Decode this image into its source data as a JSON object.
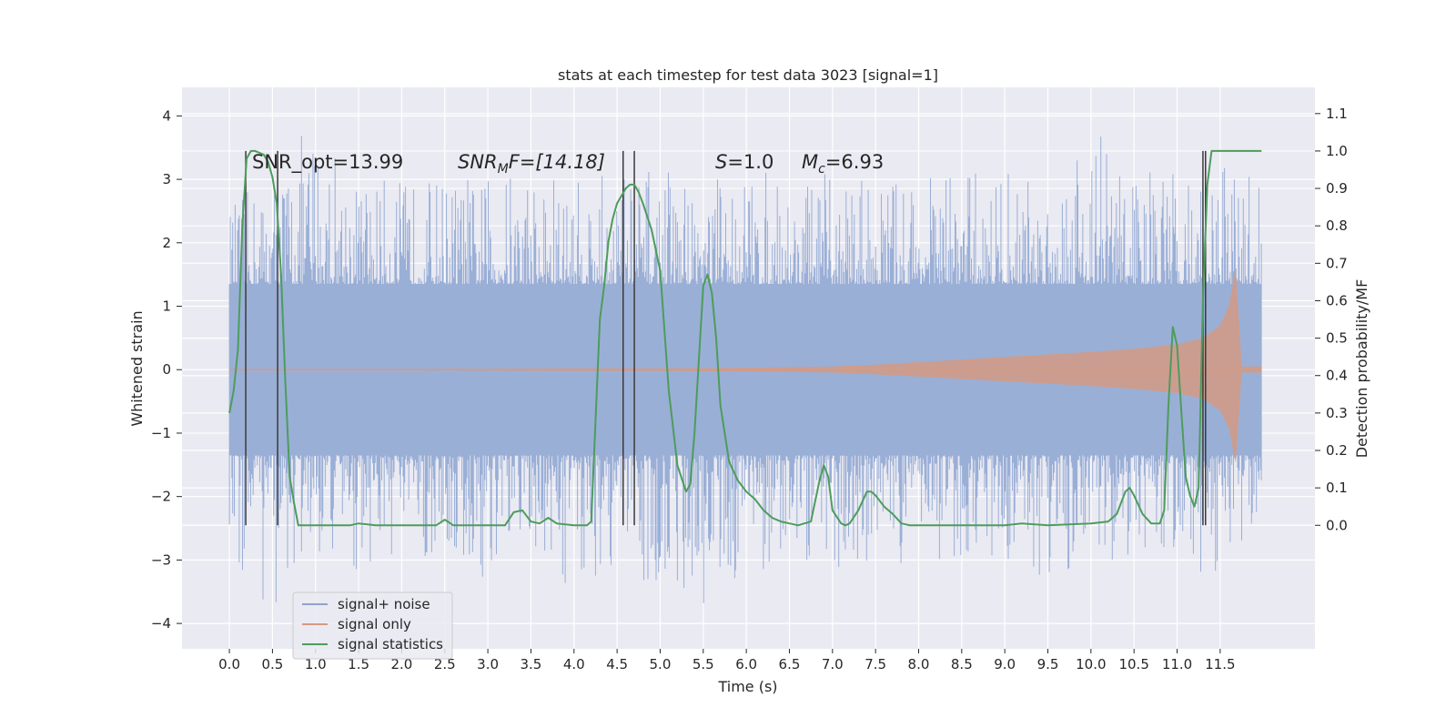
{
  "chart_data": {
    "type": "line",
    "title": "stats at each timestep for test data 3023 [signal=1]",
    "xlabel": "Time (s)",
    "ylabel": "Whitened strain",
    "y2label": "Detection probability/MF",
    "xlim": [
      -0.55,
      12.6
    ],
    "ylim": [
      -4.4,
      4.45
    ],
    "y2lim": [
      -0.33,
      1.17
    ],
    "xticks": [
      0.0,
      0.5,
      1.0,
      1.5,
      2.0,
      2.5,
      3.0,
      3.5,
      4.0,
      4.5,
      5.0,
      5.5,
      6.0,
      6.5,
      7.0,
      7.5,
      8.0,
      8.5,
      9.0,
      9.5,
      10.0,
      10.5,
      11.0,
      11.5
    ],
    "xtick_labels": [
      "0.0",
      "0.5",
      "1.0",
      "1.5",
      "2.0",
      "2.5",
      "3.0",
      "3.5",
      "4.0",
      "4.5",
      "5.0",
      "5.5",
      "6.0",
      "6.5",
      "7.0",
      "7.5",
      "8.0",
      "8.5",
      "9.0",
      "9.5",
      "10.0",
      "10.5",
      "11.0",
      "11.5"
    ],
    "yticks": [
      -4,
      -3,
      -2,
      -1,
      0,
      1,
      2,
      3,
      4
    ],
    "ytick_labels": [
      "−4",
      "−3",
      "−2",
      "−1",
      "0",
      "1",
      "2",
      "3",
      "4"
    ],
    "y2ticks": [
      0.0,
      0.1,
      0.2,
      0.3,
      0.4,
      0.5,
      0.6,
      0.7,
      0.8,
      0.9,
      1.0,
      1.1
    ],
    "y2tick_labels": [
      "0.0",
      "0.1",
      "0.2",
      "0.3",
      "0.4",
      "0.5",
      "0.6",
      "0.7",
      "0.8",
      "0.9",
      "1.0",
      "1.1"
    ],
    "grid": true,
    "legend_position": "lower-left",
    "annotations": {
      "snr_opt": "SNR_opt=13.99",
      "snr_mf_main": "SNR",
      "snr_mf_sub": "M",
      "snr_mf_tail": "F=[14.18]",
      "s_main": "S",
      "s_tail": "=1.0",
      "mc_main": "M",
      "mc_sub": "c",
      "mc_tail": "=6.93"
    },
    "vertical_lines": [
      0.19,
      0.56,
      4.57,
      4.7,
      11.3,
      11.33
    ],
    "series": [
      {
        "name": "signal+ noise",
        "color": "#8fa3cf",
        "description_kind": "noisy strain, envelope",
        "x": [
          0.0,
          0.5,
          1.0,
          1.5,
          2.0,
          2.5,
          3.0,
          3.5,
          4.0,
          4.5,
          5.0,
          5.5,
          6.0,
          6.5,
          7.0,
          7.5,
          8.0,
          8.5,
          9.0,
          9.5,
          10.0,
          10.5,
          11.0,
          11.5,
          11.98
        ],
        "upper": [
          2.6,
          3.1,
          4.05,
          3.1,
          3.0,
          3.1,
          3.05,
          3.3,
          3.0,
          3.2,
          3.2,
          3.1,
          3.2,
          3.0,
          3.1,
          3.1,
          3.1,
          3.2,
          3.2,
          3.1,
          4.1,
          3.2,
          3.1,
          3.2,
          3.35
        ],
        "lower": [
          -3.3,
          -3.9,
          -3.0,
          -3.2,
          -3.1,
          -3.1,
          -3.6,
          -3.0,
          -3.5,
          -3.2,
          -3.4,
          -3.7,
          -3.2,
          -3.3,
          -3.1,
          -3.2,
          -3.0,
          -3.0,
          -3.1,
          -3.3,
          -3.0,
          -3.1,
          -3.1,
          -3.3,
          -2.2
        ]
      },
      {
        "name": "signal only",
        "color": "#d49a84",
        "x": [
          0.0,
          1.0,
          2.0,
          3.0,
          4.0,
          5.0,
          6.0,
          6.5,
          7.0,
          7.5,
          8.0,
          8.5,
          9.0,
          9.5,
          10.0,
          10.5,
          11.0,
          11.3,
          11.5,
          11.6,
          11.68,
          11.75,
          11.98
        ],
        "amplitude": [
          0.01,
          0.01,
          0.01,
          0.015,
          0.02,
          0.02,
          0.03,
          0.04,
          0.05,
          0.08,
          0.12,
          0.16,
          0.2,
          0.24,
          0.28,
          0.33,
          0.4,
          0.5,
          0.7,
          1.0,
          1.6,
          0.05,
          0.05
        ]
      },
      {
        "name": "signal statistics",
        "color": "#4d9c5c",
        "axis": "right",
        "x": [
          0.0,
          0.05,
          0.1,
          0.15,
          0.2,
          0.25,
          0.3,
          0.4,
          0.45,
          0.5,
          0.55,
          0.6,
          0.65,
          0.7,
          0.75,
          0.8,
          1.0,
          1.4,
          1.5,
          1.7,
          2.0,
          2.2,
          2.4,
          2.5,
          2.6,
          2.8,
          3.0,
          3.2,
          3.3,
          3.4,
          3.5,
          3.6,
          3.7,
          3.8,
          4.0,
          4.15,
          4.2,
          4.3,
          4.35,
          4.4,
          4.45,
          4.5,
          4.6,
          4.65,
          4.7,
          4.75,
          4.8,
          4.9,
          5.0,
          5.1,
          5.2,
          5.3,
          5.35,
          5.4,
          5.5,
          5.55,
          5.6,
          5.65,
          5.7,
          5.8,
          5.9,
          6.0,
          6.1,
          6.2,
          6.3,
          6.4,
          6.5,
          6.6,
          6.75,
          6.85,
          6.9,
          6.95,
          7.0,
          7.1,
          7.15,
          7.2,
          7.3,
          7.4,
          7.45,
          7.5,
          7.6,
          7.7,
          7.8,
          7.9,
          8.0,
          8.5,
          9.0,
          9.2,
          9.5,
          10.0,
          10.2,
          10.3,
          10.4,
          10.45,
          10.5,
          10.6,
          10.7,
          10.8,
          10.85,
          10.9,
          10.95,
          11.0,
          11.05,
          11.1,
          11.15,
          11.2,
          11.25,
          11.3,
          11.35,
          11.4,
          11.5,
          11.6,
          11.8,
          11.98
        ],
        "values": [
          0.3,
          0.36,
          0.47,
          0.8,
          0.98,
          1.0,
          1.0,
          0.99,
          0.97,
          0.93,
          0.86,
          0.67,
          0.38,
          0.13,
          0.06,
          0.0,
          0.0,
          0.0,
          0.005,
          0.0,
          0.0,
          0.0,
          0.0,
          0.015,
          0.0,
          0.0,
          0.0,
          0.0,
          0.035,
          0.04,
          0.01,
          0.005,
          0.02,
          0.005,
          0.0,
          0.0,
          0.01,
          0.55,
          0.64,
          0.76,
          0.82,
          0.86,
          0.9,
          0.91,
          0.91,
          0.89,
          0.86,
          0.79,
          0.68,
          0.36,
          0.16,
          0.09,
          0.11,
          0.25,
          0.64,
          0.67,
          0.62,
          0.5,
          0.32,
          0.17,
          0.12,
          0.09,
          0.07,
          0.04,
          0.02,
          0.01,
          0.005,
          0.0,
          0.01,
          0.12,
          0.16,
          0.13,
          0.04,
          0.005,
          0.0,
          0.005,
          0.04,
          0.09,
          0.09,
          0.08,
          0.05,
          0.03,
          0.005,
          0.0,
          0.0,
          0.0,
          0.0,
          0.005,
          0.0,
          0.005,
          0.01,
          0.03,
          0.09,
          0.1,
          0.08,
          0.03,
          0.005,
          0.005,
          0.04,
          0.32,
          0.53,
          0.48,
          0.3,
          0.13,
          0.08,
          0.05,
          0.1,
          0.6,
          0.91,
          1.0,
          1.0,
          1.0,
          1.0,
          1.0
        ]
      }
    ]
  }
}
